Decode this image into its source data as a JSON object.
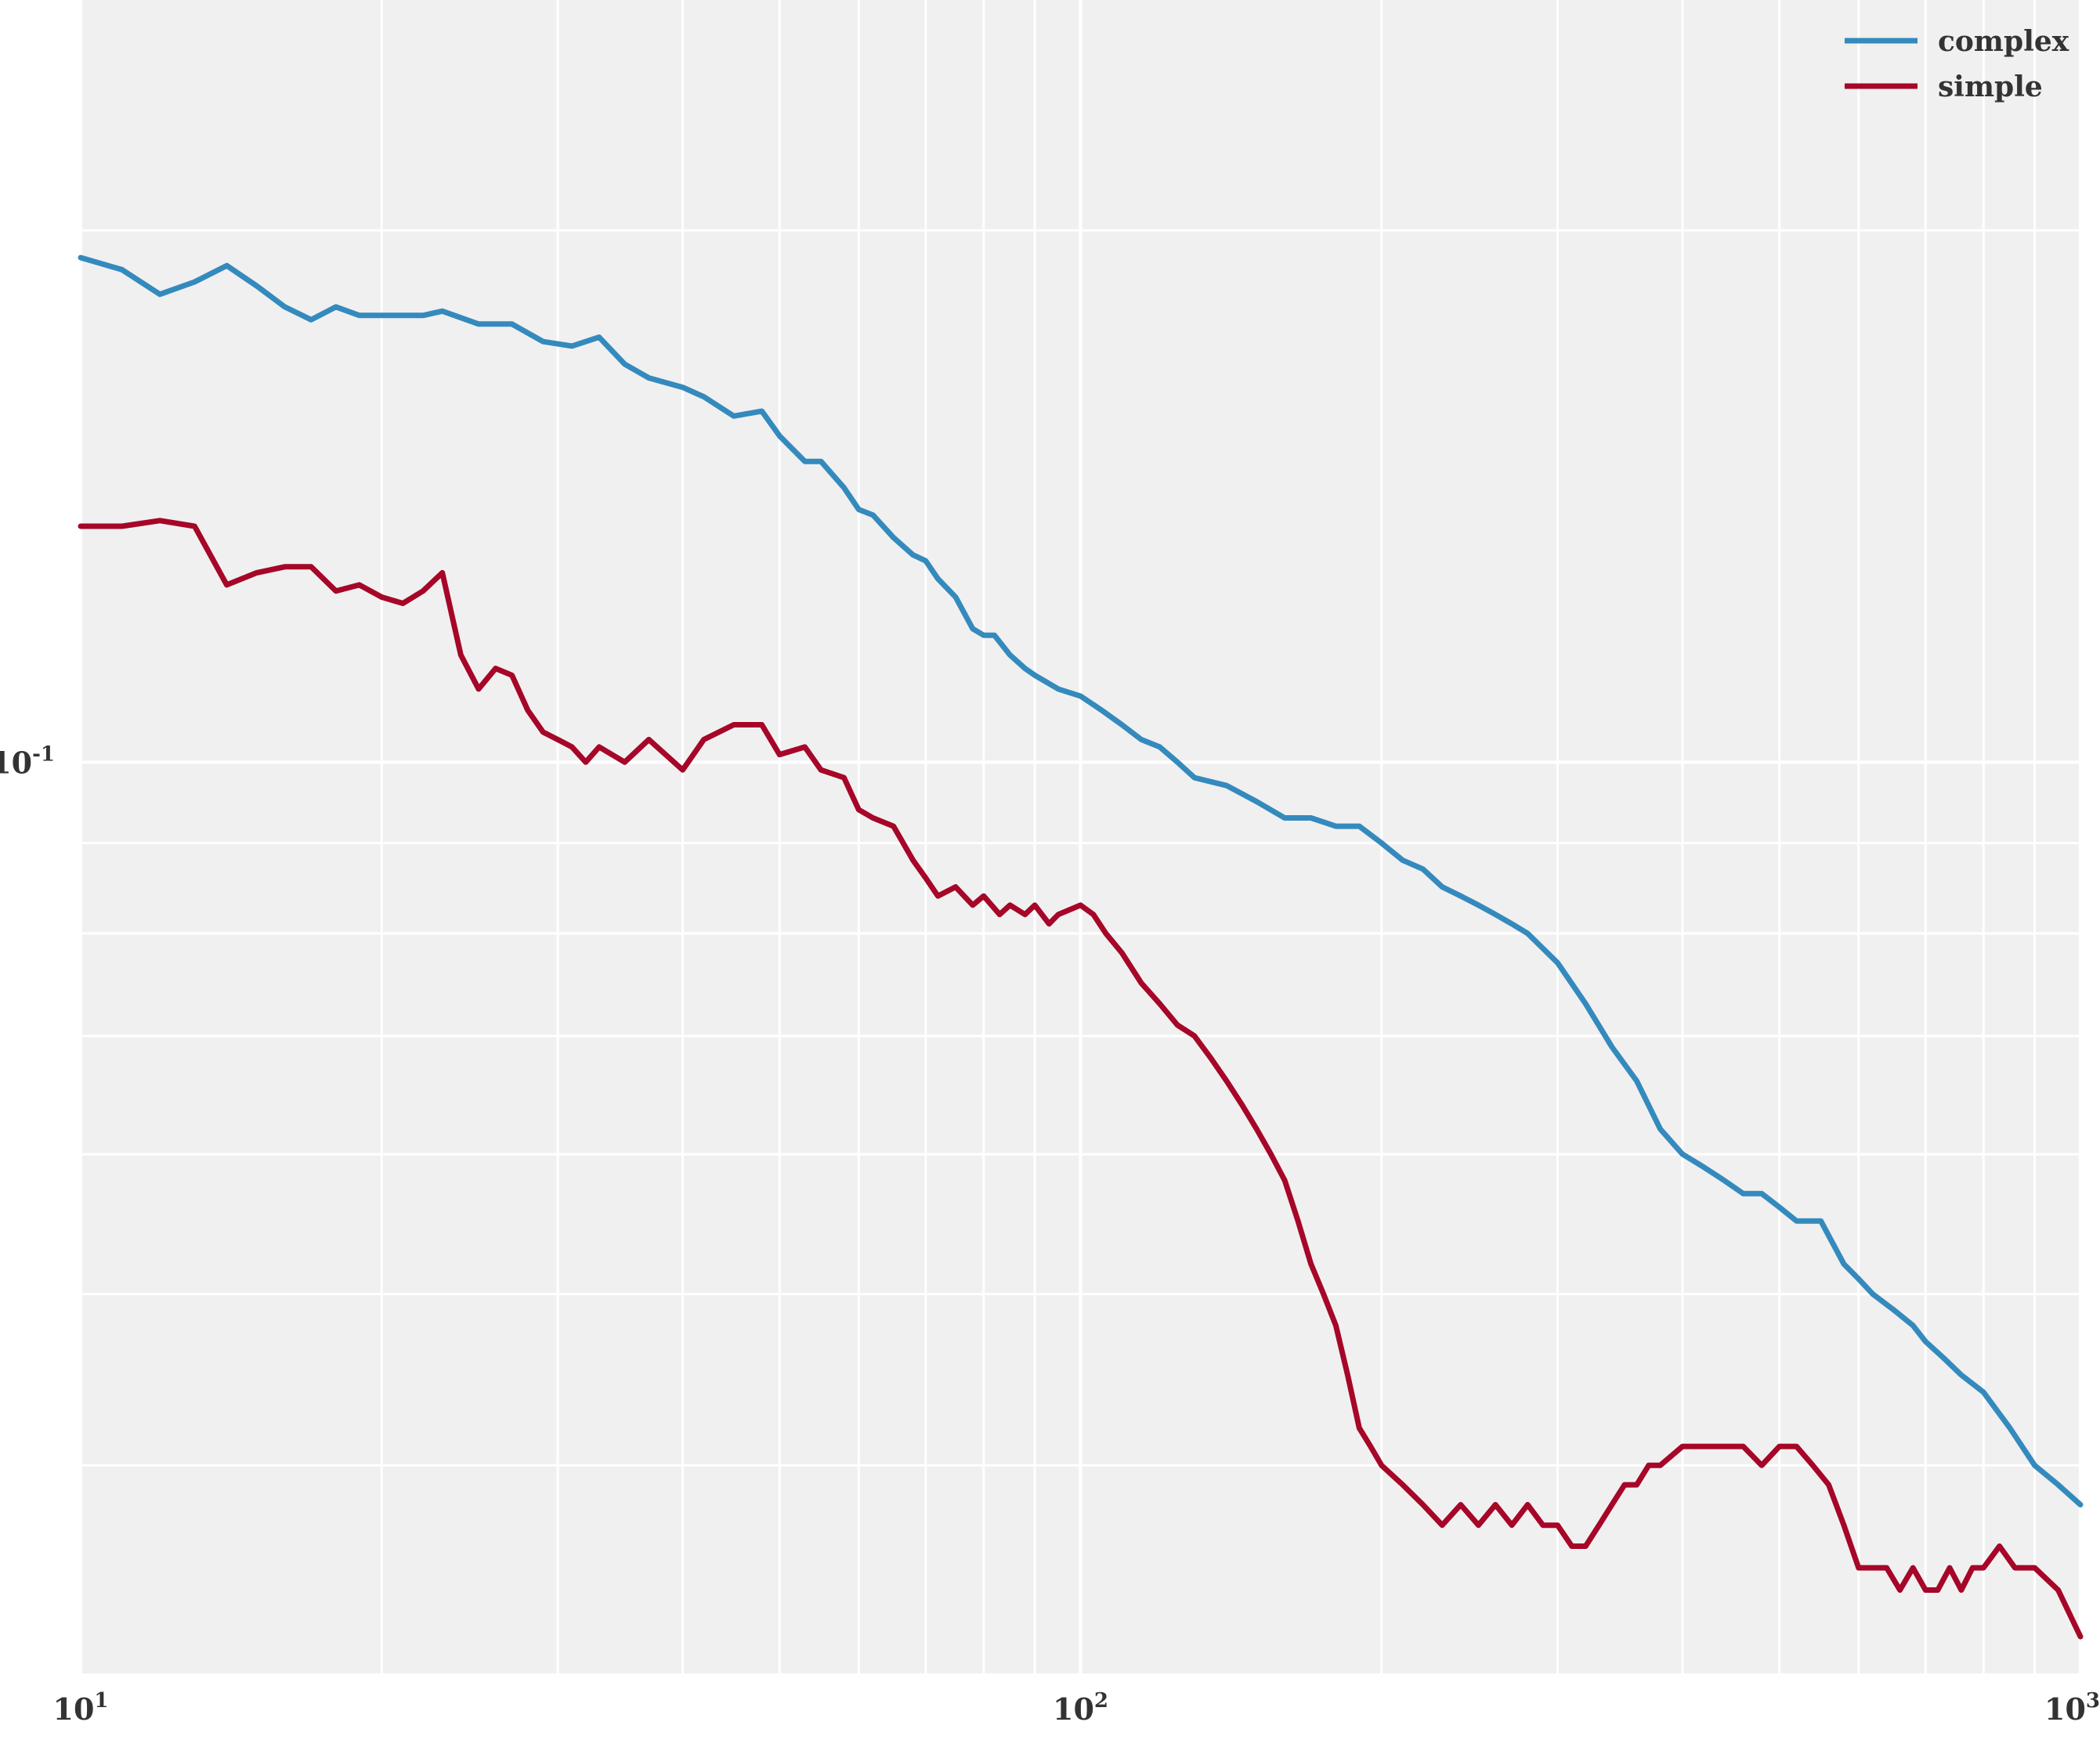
{
  "chart_data": {
    "type": "line",
    "title": "",
    "xlabel": "",
    "ylabel": "",
    "xscale": "log",
    "yscale": "log",
    "xlim": [
      10,
      1000
    ],
    "ylim": [
      0.0305,
      0.27
    ],
    "grid": true,
    "legend": "top-right",
    "background": "#f0f0f0",
    "grid_color": "#ffffff",
    "x_ticks": [
      {
        "value": 10,
        "base": "10",
        "exp": "1"
      },
      {
        "value": 100,
        "base": "10",
        "exp": "2"
      },
      {
        "value": 1000,
        "base": "10",
        "exp": "3"
      }
    ],
    "y_ticks": [
      {
        "value": 0.1,
        "base": "10",
        "exp": "-1"
      }
    ],
    "series": [
      {
        "name": "complex",
        "color": "#348abd",
        "points": [
          [
            10,
            0.193
          ],
          [
            11,
            0.19
          ],
          [
            12,
            0.184
          ],
          [
            13,
            0.187
          ],
          [
            14,
            0.191
          ],
          [
            15,
            0.186
          ],
          [
            16,
            0.181
          ],
          [
            17,
            0.178
          ],
          [
            18,
            0.181
          ],
          [
            19,
            0.179
          ],
          [
            20,
            0.179
          ],
          [
            22,
            0.179
          ],
          [
            23,
            0.18
          ],
          [
            25,
            0.177
          ],
          [
            27,
            0.177
          ],
          [
            29,
            0.173
          ],
          [
            31,
            0.172
          ],
          [
            33,
            0.174
          ],
          [
            35,
            0.168
          ],
          [
            37,
            0.165
          ],
          [
            40,
            0.163
          ],
          [
            42,
            0.161
          ],
          [
            45,
            0.157
          ],
          [
            48,
            0.158
          ],
          [
            50,
            0.153
          ],
          [
            53,
            0.148
          ],
          [
            55,
            0.148
          ],
          [
            58,
            0.143
          ],
          [
            60,
            0.139
          ],
          [
            62,
            0.138
          ],
          [
            65,
            0.134
          ],
          [
            68,
            0.131
          ],
          [
            70,
            0.13
          ],
          [
            72,
            0.127
          ],
          [
            75,
            0.124
          ],
          [
            78,
            0.119
          ],
          [
            80,
            0.118
          ],
          [
            82,
            0.118
          ],
          [
            85,
            0.115
          ],
          [
            88,
            0.113
          ],
          [
            90,
            0.112
          ],
          [
            95,
            0.11
          ],
          [
            100,
            0.109
          ],
          [
            105,
            0.107
          ],
          [
            110,
            0.105
          ],
          [
            115,
            0.103
          ],
          [
            120,
            0.102
          ],
          [
            125,
            0.1
          ],
          [
            130,
            0.098
          ],
          [
            140,
            0.097
          ],
          [
            150,
            0.095
          ],
          [
            160,
            0.093
          ],
          [
            170,
            0.093
          ],
          [
            180,
            0.092
          ],
          [
            190,
            0.092
          ],
          [
            200,
            0.09
          ],
          [
            210,
            0.088
          ],
          [
            220,
            0.087
          ],
          [
            230,
            0.085
          ],
          [
            240,
            0.084
          ],
          [
            250,
            0.083
          ],
          [
            260,
            0.082
          ],
          [
            270,
            0.081
          ],
          [
            280,
            0.08
          ],
          [
            300,
            0.077
          ],
          [
            320,
            0.073
          ],
          [
            340,
            0.069
          ],
          [
            360,
            0.066
          ],
          [
            380,
            0.062
          ],
          [
            400,
            0.06
          ],
          [
            420,
            0.059
          ],
          [
            440,
            0.058
          ],
          [
            460,
            0.057
          ],
          [
            480,
            0.057
          ],
          [
            500,
            0.056
          ],
          [
            520,
            0.055
          ],
          [
            550,
            0.055
          ],
          [
            580,
            0.052
          ],
          [
            600,
            0.051
          ],
          [
            620,
            0.05
          ],
          [
            650,
            0.049
          ],
          [
            680,
            0.048
          ],
          [
            700,
            0.047
          ],
          [
            730,
            0.046
          ],
          [
            760,
            0.045
          ],
          [
            800,
            0.044
          ],
          [
            850,
            0.042
          ],
          [
            900,
            0.04
          ],
          [
            950,
            0.039
          ],
          [
            1000,
            0.038
          ]
        ]
      },
      {
        "name": "simple",
        "color": "#a60628",
        "points": [
          [
            10,
            0.136
          ],
          [
            11,
            0.136
          ],
          [
            12,
            0.137
          ],
          [
            13,
            0.136
          ],
          [
            14,
            0.126
          ],
          [
            15,
            0.128
          ],
          [
            16,
            0.129
          ],
          [
            17,
            0.129
          ],
          [
            18,
            0.125
          ],
          [
            19,
            0.126
          ],
          [
            20,
            0.124
          ],
          [
            21,
            0.123
          ],
          [
            22,
            0.125
          ],
          [
            23,
            0.128
          ],
          [
            24,
            0.115
          ],
          [
            25,
            0.11
          ],
          [
            26,
            0.113
          ],
          [
            27,
            0.112
          ],
          [
            28,
            0.107
          ],
          [
            29,
            0.104
          ],
          [
            30,
            0.103
          ],
          [
            31,
            0.102
          ],
          [
            32,
            0.1
          ],
          [
            33,
            0.102
          ],
          [
            35,
            0.1
          ],
          [
            37,
            0.103
          ],
          [
            40,
            0.099
          ],
          [
            42,
            0.103
          ],
          [
            45,
            0.105
          ],
          [
            48,
            0.105
          ],
          [
            50,
            0.101
          ],
          [
            53,
            0.102
          ],
          [
            55,
            0.099
          ],
          [
            58,
            0.098
          ],
          [
            60,
            0.094
          ],
          [
            62,
            0.093
          ],
          [
            65,
            0.092
          ],
          [
            68,
            0.088
          ],
          [
            70,
            0.086
          ],
          [
            72,
            0.084
          ],
          [
            75,
            0.085
          ],
          [
            78,
            0.083
          ],
          [
            80,
            0.084
          ],
          [
            83,
            0.082
          ],
          [
            85,
            0.083
          ],
          [
            88,
            0.082
          ],
          [
            90,
            0.083
          ],
          [
            93,
            0.081
          ],
          [
            95,
            0.082
          ],
          [
            100,
            0.083
          ],
          [
            103,
            0.082
          ],
          [
            106,
            0.08
          ],
          [
            110,
            0.078
          ],
          [
            115,
            0.075
          ],
          [
            120,
            0.073
          ],
          [
            125,
            0.071
          ],
          [
            130,
            0.07
          ],
          [
            135,
            0.068
          ],
          [
            140,
            0.066
          ],
          [
            145,
            0.064
          ],
          [
            150,
            0.062
          ],
          [
            155,
            0.06
          ],
          [
            160,
            0.058
          ],
          [
            165,
            0.055
          ],
          [
            170,
            0.052
          ],
          [
            175,
            0.05
          ],
          [
            180,
            0.048
          ],
          [
            185,
            0.045
          ],
          [
            190,
            0.042
          ],
          [
            195,
            0.041
          ],
          [
            200,
            0.04
          ],
          [
            210,
            0.039
          ],
          [
            220,
            0.038
          ],
          [
            230,
            0.037
          ],
          [
            240,
            0.038
          ],
          [
            250,
            0.037
          ],
          [
            260,
            0.038
          ],
          [
            270,
            0.037
          ],
          [
            280,
            0.038
          ],
          [
            290,
            0.037
          ],
          [
            300,
            0.037
          ],
          [
            310,
            0.036
          ],
          [
            320,
            0.036
          ],
          [
            330,
            0.037
          ],
          [
            340,
            0.038
          ],
          [
            350,
            0.039
          ],
          [
            360,
            0.039
          ],
          [
            370,
            0.04
          ],
          [
            380,
            0.04
          ],
          [
            400,
            0.041
          ],
          [
            420,
            0.041
          ],
          [
            440,
            0.041
          ],
          [
            460,
            0.041
          ],
          [
            480,
            0.04
          ],
          [
            500,
            0.041
          ],
          [
            520,
            0.041
          ],
          [
            540,
            0.04
          ],
          [
            560,
            0.039
          ],
          [
            580,
            0.037
          ],
          [
            600,
            0.035
          ],
          [
            620,
            0.035
          ],
          [
            640,
            0.035
          ],
          [
            660,
            0.034
          ],
          [
            680,
            0.035
          ],
          [
            700,
            0.034
          ],
          [
            720,
            0.034
          ],
          [
            740,
            0.035
          ],
          [
            760,
            0.034
          ],
          [
            780,
            0.035
          ],
          [
            800,
            0.035
          ],
          [
            830,
            0.036
          ],
          [
            860,
            0.035
          ],
          [
            900,
            0.035
          ],
          [
            950,
            0.034
          ],
          [
            1000,
            0.032
          ]
        ]
      }
    ]
  }
}
